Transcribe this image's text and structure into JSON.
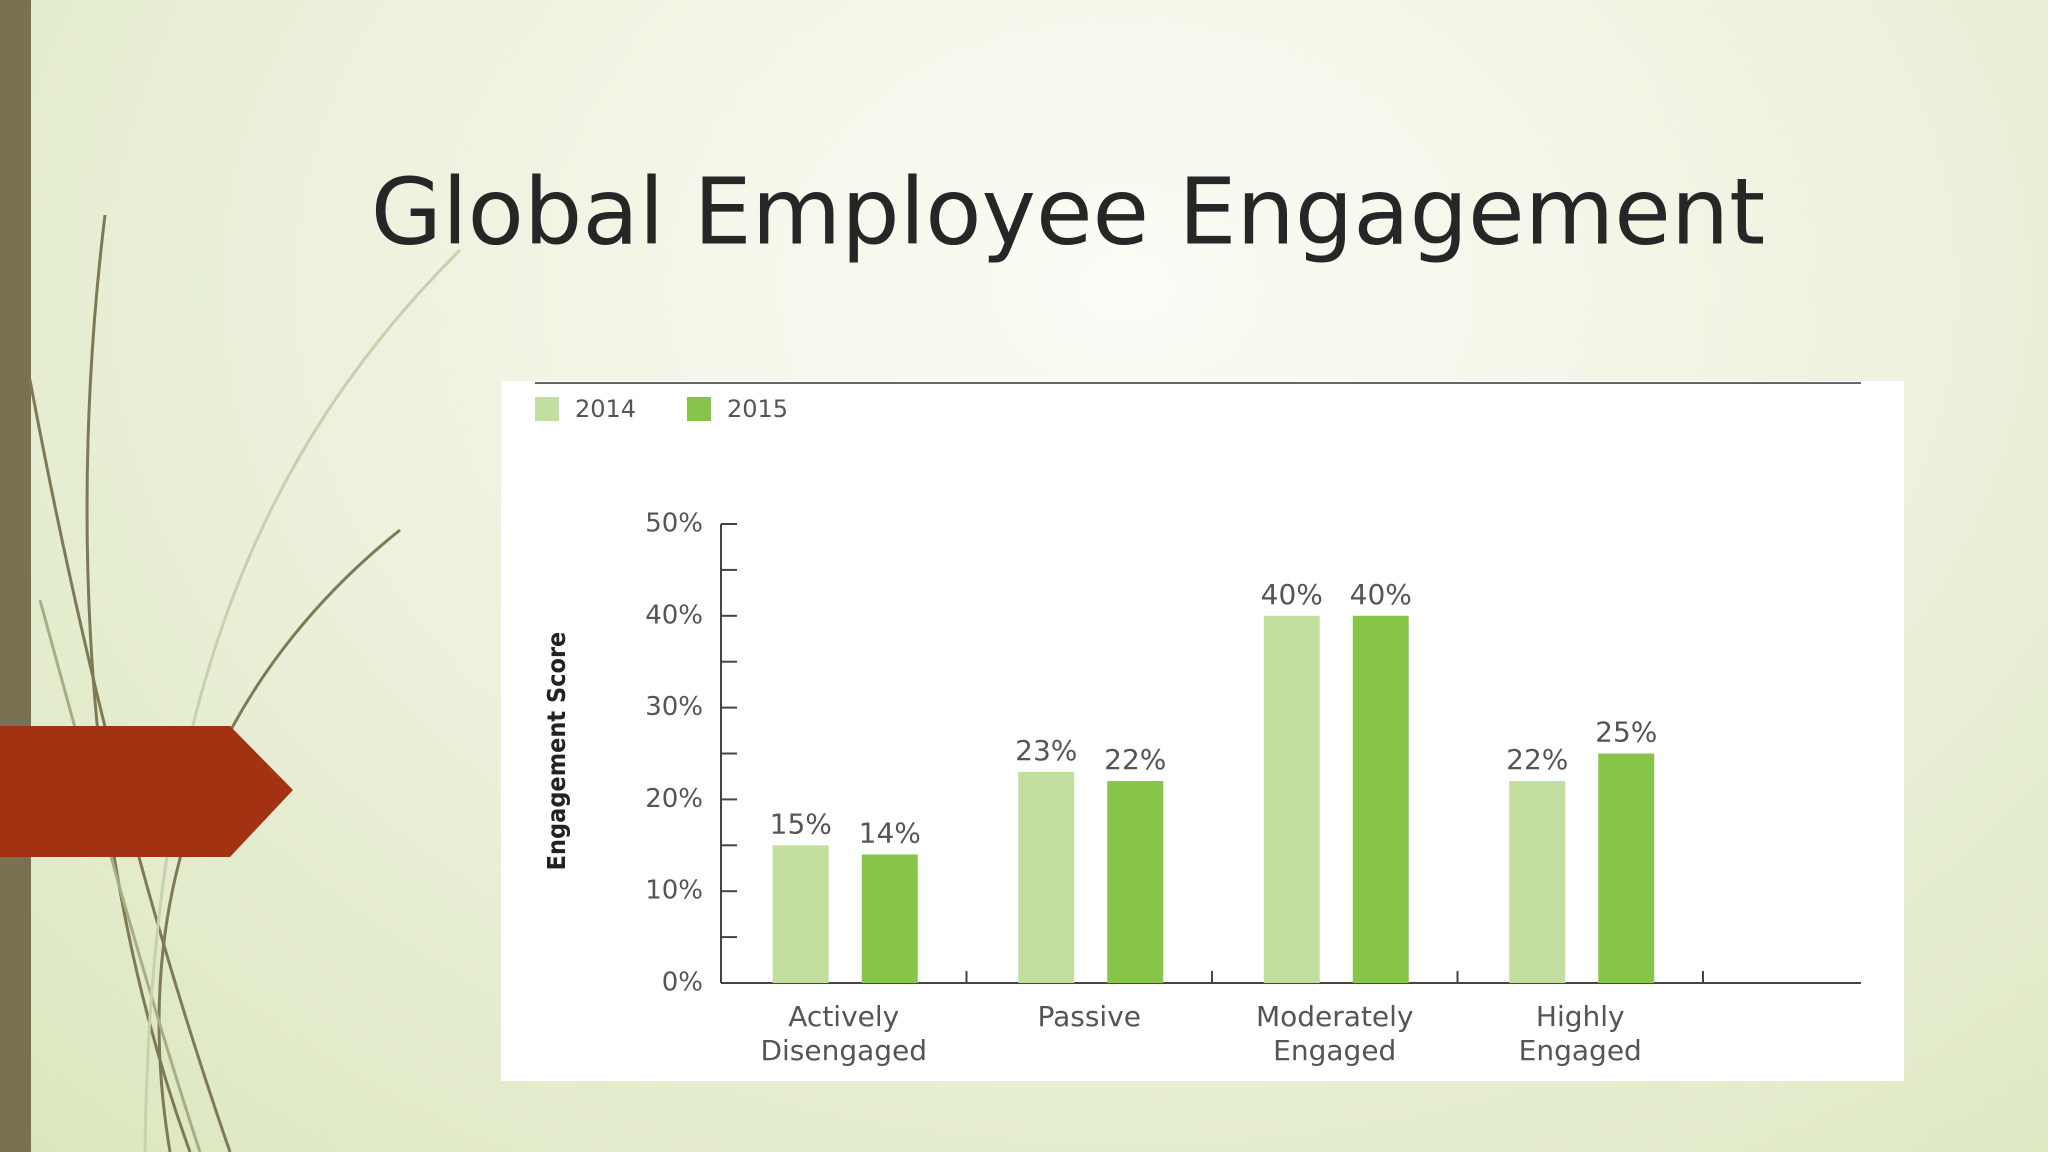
{
  "chart_data": {
    "type": "bar",
    "title": "Global Employee Engagement",
    "y_label": "Engagement Score",
    "categories": [
      "Actively\nDisengaged",
      "Passive",
      "Moderately\nEngaged",
      "Highly\nEngaged"
    ],
    "series": [
      {
        "name": "2014",
        "color": "#c2df9f",
        "values": [
          15,
          23,
          40,
          22
        ],
        "value_labels": [
          "15%",
          "23%",
          "40%",
          "22%"
        ]
      },
      {
        "name": "2015",
        "color": "#86c44a",
        "values": [
          14,
          22,
          40,
          25
        ],
        "value_labels": [
          "14%",
          "22%",
          "40%",
          "25%"
        ]
      }
    ],
    "ylim": [
      0,
      50
    ],
    "yticks": [
      {
        "value": 0,
        "label": "0%"
      },
      {
        "value": 10,
        "label": "10%"
      },
      {
        "value": 20,
        "label": "20%"
      },
      {
        "value": 30,
        "label": "30%"
      },
      {
        "value": 40,
        "label": "40%"
      },
      {
        "value": 50,
        "label": "50%"
      }
    ],
    "legend": "top-left"
  }
}
